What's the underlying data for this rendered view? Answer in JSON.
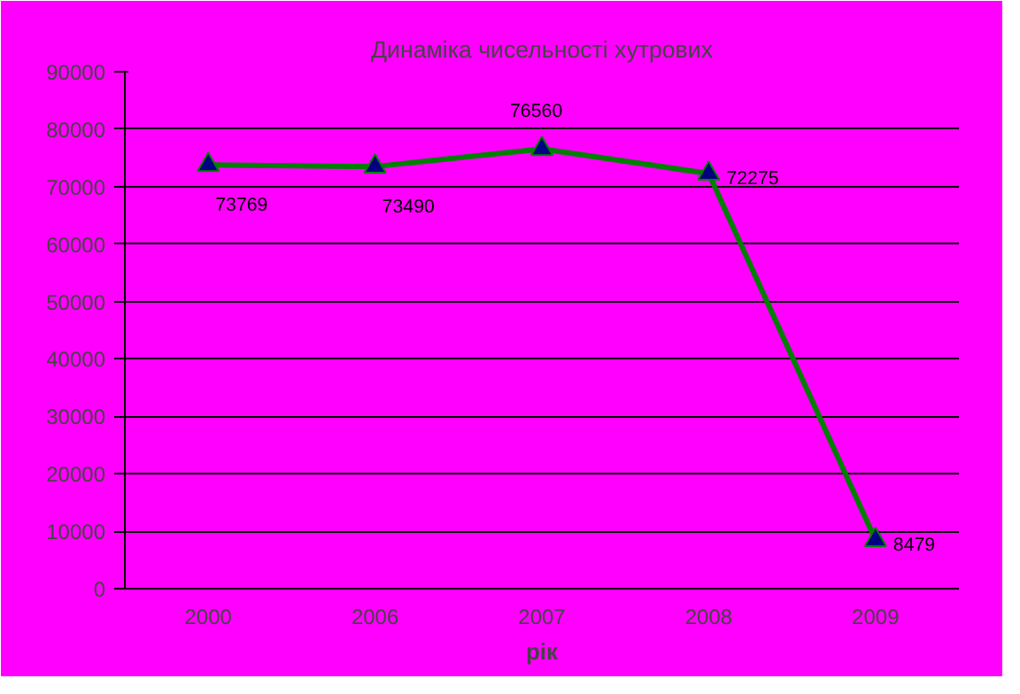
{
  "chart_data": {
    "type": "line",
    "title": "Динаміка чисельності хутрових",
    "xlabel": "рік",
    "categories": [
      "2000",
      "2006",
      "2007",
      "2008",
      "2009"
    ],
    "series": [
      {
        "color": "#008000",
        "values": [
          73769,
          73490,
          76560,
          72275,
          8479
        ]
      }
    ],
    "ylim": [
      0,
      90000
    ],
    "yticks": [
      0,
      10000,
      20000,
      30000,
      40000,
      50000,
      60000,
      70000,
      80000,
      90000
    ],
    "grid": "y",
    "marker": "triangle",
    "line_style": "solid",
    "data_labels": true
  }
}
